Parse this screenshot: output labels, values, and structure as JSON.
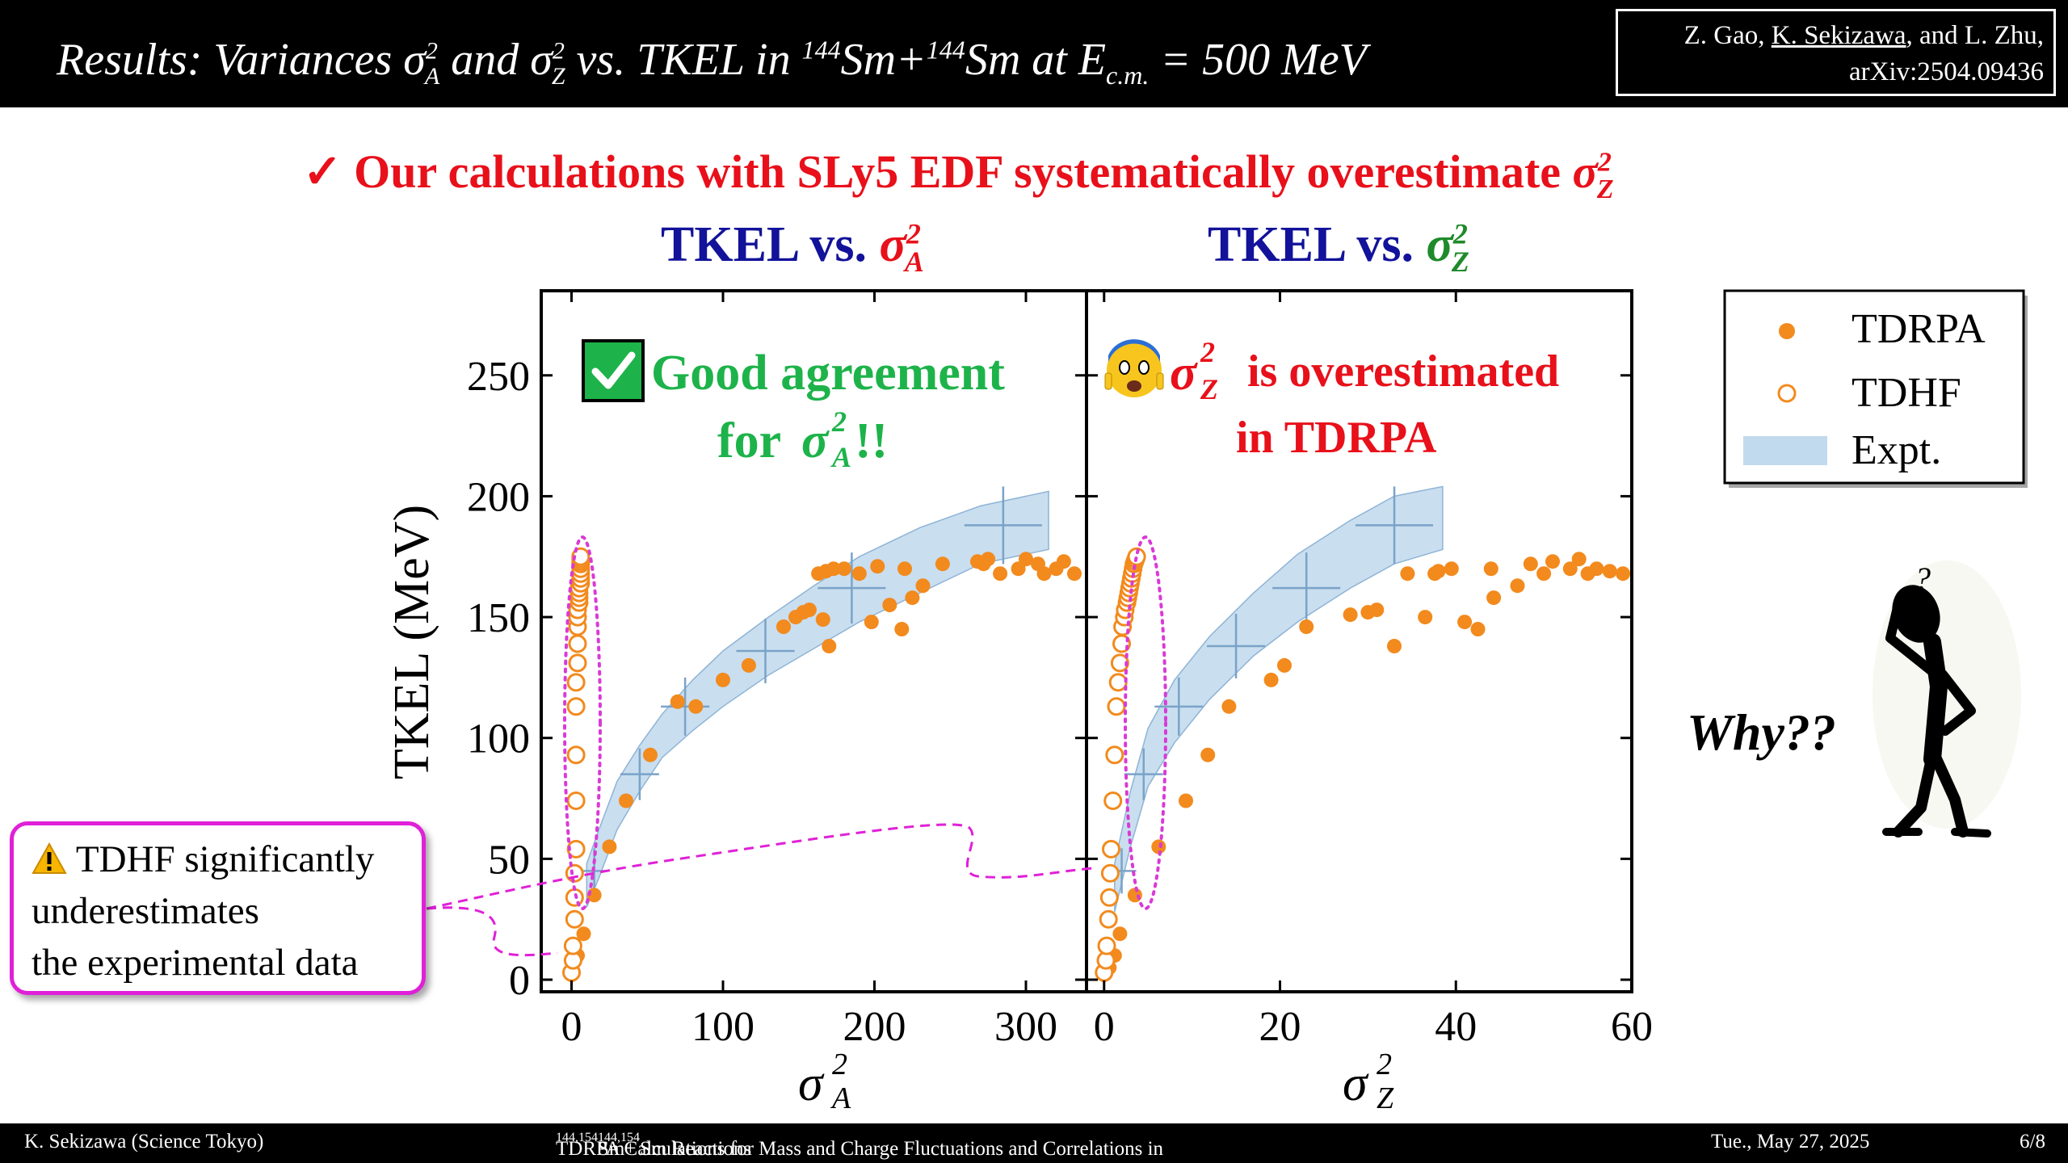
{
  "header": {
    "title_prefix": "Results:  Variances",
    "title_sym_a": "σ",
    "title_a_sup": "2",
    "title_a_sub": "A",
    "title_and": "and",
    "title_sym_z": "σ",
    "title_z_sup": "2",
    "title_z_sub": "Z",
    "title_vs": "vs. TKEL in",
    "title_sm_mass": "144",
    "title_sm": "Sm+",
    "title_sm_mass2": "144",
    "title_sm2": "Sm at E",
    "title_e_sub": "c.m.",
    "title_energy": "= 500 MeV",
    "citation_line1_pre": "Z. Gao, ",
    "citation_author_underlined": "K. Sekizawa",
    "citation_line1_post": ", and L. Zhu,",
    "citation_line2": "arXiv:2504.09436"
  },
  "headline": {
    "check": "✓",
    "text": "Our calculations with SLy5 EDF systematically overestimate",
    "sym": "σ",
    "sup": "2",
    "sub": "Z"
  },
  "panel_titles": {
    "left_prefix": "TKEL vs.",
    "left_sym": "σ",
    "left_sup": "2",
    "left_sub": "A",
    "right_prefix": "TKEL vs.",
    "right_sym": "σ",
    "right_sup": "2",
    "right_sub": "Z"
  },
  "annotations": {
    "good_line1": "Good agreement",
    "good_line2_pre": "for",
    "good_sym": "σ",
    "good_sup": "2",
    "good_sub": "A",
    "good_line2_post": "!!",
    "over_sym": "σ",
    "over_sup": "2",
    "over_sub": "Z",
    "over_line1": "is overestimated",
    "over_line2": "in TDRPA",
    "callout_icon": "warning-icon",
    "callout_line1": "TDHF significantly",
    "callout_line2": "underestimates",
    "callout_line3": "the experimental data",
    "why": "Why??",
    "question_mark": "?"
  },
  "legend": {
    "items": [
      "TDRPA",
      "TDHF",
      "Expt."
    ]
  },
  "footer": {
    "author": "K. Sekizawa (Science Tokyo)",
    "talk_title_pre": "TDRPA Calculations for Mass and Charge Fluctuations and Correlations in",
    "talk_mass1": "144,154",
    "talk_mid": "Sm+",
    "talk_mass2": "144,154",
    "talk_post": "Sm Reactions",
    "date": "Tue., May 27, 2025",
    "page": "6/8"
  },
  "colors": {
    "tdrpa": "#f28a1d",
    "tdhf": "#f28a1d",
    "expt_band": "#b7d3ea",
    "highlight_red": "#e8101a",
    "title_blue": "#12129a",
    "good_green": "#1db34a",
    "sigmaZ_green": "#1e8a2a",
    "ellipse_magenta": "#d93ad6"
  },
  "chart_data": [
    {
      "type": "scatter",
      "panel": "left",
      "xlabel_sym": "σ",
      "xlabel_sup": "2",
      "xlabel_sub": "A",
      "ylabel": "TKEL (MeV)",
      "xlim": [
        -20,
        340
      ],
      "ylim": [
        -5,
        285
      ],
      "xticks": [
        0,
        100,
        200,
        300
      ],
      "yticks": [
        0,
        50,
        100,
        150,
        200,
        250
      ],
      "series": [
        {
          "name": "TDRPA",
          "marker": "filled",
          "x": [
            0,
            4,
            8,
            15,
            25,
            36,
            52,
            70,
            82,
            100,
            117,
            140,
            148,
            153,
            157,
            163,
            166,
            168,
            170,
            173,
            180,
            190,
            198,
            202,
            210,
            218,
            220,
            225,
            232,
            245,
            268,
            272,
            275,
            283,
            295,
            300,
            308,
            312,
            320,
            325,
            332
          ],
          "y": [
            2,
            10,
            19,
            35,
            55,
            74,
            93,
            115,
            113,
            124,
            130,
            146,
            150,
            152,
            153,
            168,
            149,
            169,
            138,
            170,
            170,
            168,
            148,
            171,
            155,
            145,
            170,
            158,
            163,
            172,
            173,
            172,
            174,
            168,
            170,
            174,
            172,
            168,
            170,
            173,
            168
          ]
        },
        {
          "name": "TDHF",
          "marker": "open",
          "x": [
            0,
            1,
            1,
            2,
            2,
            2,
            3,
            3,
            3,
            3,
            3,
            4,
            4,
            4,
            4,
            4,
            5,
            5,
            5,
            5,
            6,
            6,
            6,
            6,
            6,
            6,
            6,
            6
          ],
          "y": [
            3,
            8,
            14,
            25,
            34,
            44,
            54,
            74,
            93,
            113,
            123,
            131,
            139,
            146,
            150,
            153,
            156,
            158,
            160,
            162,
            164,
            166,
            168,
            170,
            172,
            173,
            174,
            175
          ]
        },
        {
          "name": "Expt.",
          "type": "band",
          "x": [
            10,
            18,
            30,
            45,
            60,
            80,
            100,
            130,
            160,
            190,
            230,
            270,
            315
          ],
          "y_low": [
            30,
            42,
            62,
            78,
            92,
            103,
            113,
            126,
            137,
            148,
            160,
            172,
            178
          ],
          "y_high": [
            48,
            62,
            82,
            97,
            110,
            124,
            136,
            150,
            163,
            175,
            187,
            196,
            202
          ],
          "points": [
            {
              "x": 15,
              "y": 45
            },
            {
              "x": 45,
              "y": 85
            },
            {
              "x": 75,
              "y": 113
            },
            {
              "x": 128,
              "y": 136
            },
            {
              "x": 185,
              "y": 162
            },
            {
              "x": 285,
              "y": 188
            }
          ]
        }
      ]
    },
    {
      "type": "scatter",
      "panel": "right",
      "xlabel_sym": "σ",
      "xlabel_sup": "2",
      "xlabel_sub": "Z",
      "ylabel": "",
      "xlim": [
        -2,
        60
      ],
      "ylim": [
        -5,
        285
      ],
      "xticks": [
        0,
        20,
        40,
        60
      ],
      "yticks": [
        0,
        50,
        100,
        150,
        200,
        250
      ],
      "series": [
        {
          "name": "TDRPA",
          "marker": "filled",
          "x": [
            0,
            0.6,
            1.2,
            1.8,
            3.5,
            6.2,
            9.3,
            11.8,
            14.2,
            19,
            20.5,
            23,
            28,
            30,
            31,
            33,
            34.5,
            36.5,
            37.6,
            38,
            39.5,
            41,
            42.5,
            44,
            44.3,
            47,
            48.5,
            50,
            51,
            53,
            54,
            55,
            56,
            57.5,
            59
          ],
          "y": [
            2,
            5,
            10,
            19,
            35,
            55,
            74,
            93,
            113,
            124,
            130,
            146,
            151,
            152,
            153,
            138,
            168,
            150,
            168,
            169,
            170,
            148,
            145,
            170,
            158,
            163,
            172,
            168,
            173,
            170,
            174,
            168,
            170,
            169,
            168
          ]
        },
        {
          "name": "TDHF",
          "marker": "open",
          "x": [
            0,
            0.2,
            0.3,
            0.5,
            0.6,
            0.7,
            0.8,
            1.0,
            1.2,
            1.4,
            1.6,
            1.8,
            2.0,
            2.1,
            2.3,
            2.4,
            2.6,
            2.7,
            2.8,
            2.9,
            3.0,
            3.1,
            3.2,
            3.3,
            3.4,
            3.5,
            3.6,
            3.7
          ],
          "y": [
            3,
            8,
            14,
            25,
            34,
            44,
            54,
            74,
            93,
            113,
            123,
            131,
            139,
            146,
            150,
            153,
            156,
            158,
            160,
            162,
            164,
            166,
            168,
            170,
            172,
            173,
            174,
            175
          ]
        },
        {
          "name": "Expt.",
          "type": "band",
          "x": [
            1.2,
            3,
            5,
            8,
            12,
            17,
            22,
            28,
            33,
            38.5
          ],
          "y_low": [
            28,
            55,
            80,
            98,
            116,
            134,
            148,
            162,
            172,
            178
          ],
          "y_high": [
            48,
            78,
            104,
            124,
            142,
            160,
            176,
            190,
            200,
            204
          ],
          "points": [
            {
              "x": 2,
              "y": 45
            },
            {
              "x": 4.5,
              "y": 85
            },
            {
              "x": 8.5,
              "y": 113
            },
            {
              "x": 15,
              "y": 138
            },
            {
              "x": 23,
              "y": 162
            },
            {
              "x": 33,
              "y": 188
            }
          ]
        }
      ]
    }
  ]
}
